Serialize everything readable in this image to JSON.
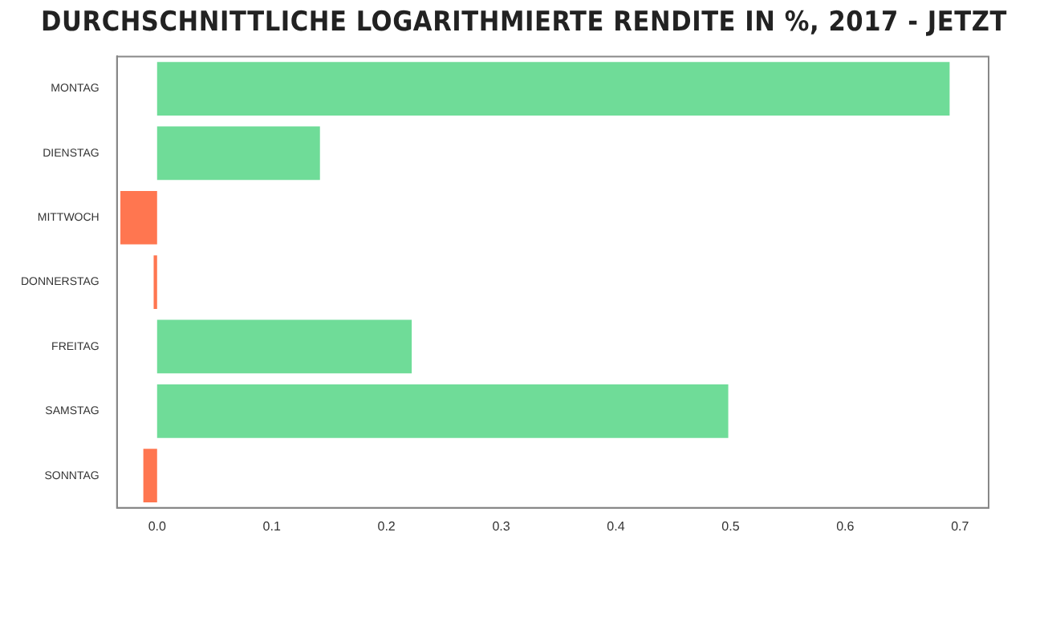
{
  "chart_data": {
    "type": "bar",
    "orientation": "horizontal",
    "title": "DURCHSCHNITTLICHE LOGARITHMIERTE RENDITE IN %, 2017 - JETZT",
    "categories": [
      "MONTAG",
      "DIENSTAG",
      "MITTWOCH",
      "DONNERSTAG",
      "FREITAG",
      "SAMSTAG",
      "SONNTAG"
    ],
    "values": [
      0.691,
      0.142,
      -0.032,
      -0.003,
      0.222,
      0.498,
      -0.012
    ],
    "colors": [
      "#6fdc98",
      "#6fdc98",
      "#ff7650",
      "#ff7650",
      "#6fdc98",
      "#6fdc98",
      "#ff7650"
    ],
    "xlim": [
      -0.035,
      0.725
    ],
    "xticks": [
      {
        "value": 0,
        "label": "0.0"
      },
      0.1,
      0.2,
      0.3,
      0.4,
      0.5,
      0.6,
      0.7
    ],
    "grid": false
  }
}
